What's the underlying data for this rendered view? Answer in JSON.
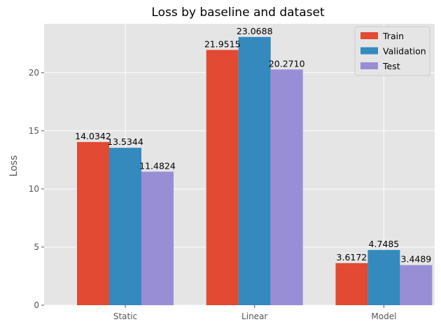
{
  "chart_data": {
    "type": "bar",
    "title": "Loss by baseline and dataset",
    "xlabel": "",
    "ylabel": "Loss",
    "categories": [
      "Static",
      "Linear",
      "Model"
    ],
    "series": [
      {
        "name": "Train",
        "values": [
          14.0342,
          21.9515,
          3.6172
        ],
        "labels": [
          "14.0342",
          "21.9515",
          "3.6172"
        ]
      },
      {
        "name": "Validation",
        "values": [
          13.5344,
          23.0688,
          4.7485
        ],
        "labels": [
          "13.5344",
          "23.0688",
          "4.7485"
        ]
      },
      {
        "name": "Test",
        "values": [
          11.4824,
          20.271,
          3.4489
        ],
        "labels": [
          "11.4824",
          "20.2710",
          "3.4489"
        ]
      }
    ],
    "ylim": [
      0,
      24.2
    ],
    "yticks": [
      0,
      5,
      10,
      15,
      20
    ],
    "grid": true,
    "legend": "top-right",
    "colors": {
      "series": [
        "#E24A33",
        "#348ABD",
        "#988ED5"
      ],
      "plot_background": "#E5E5E5",
      "grid": "#FFFFFF"
    }
  }
}
